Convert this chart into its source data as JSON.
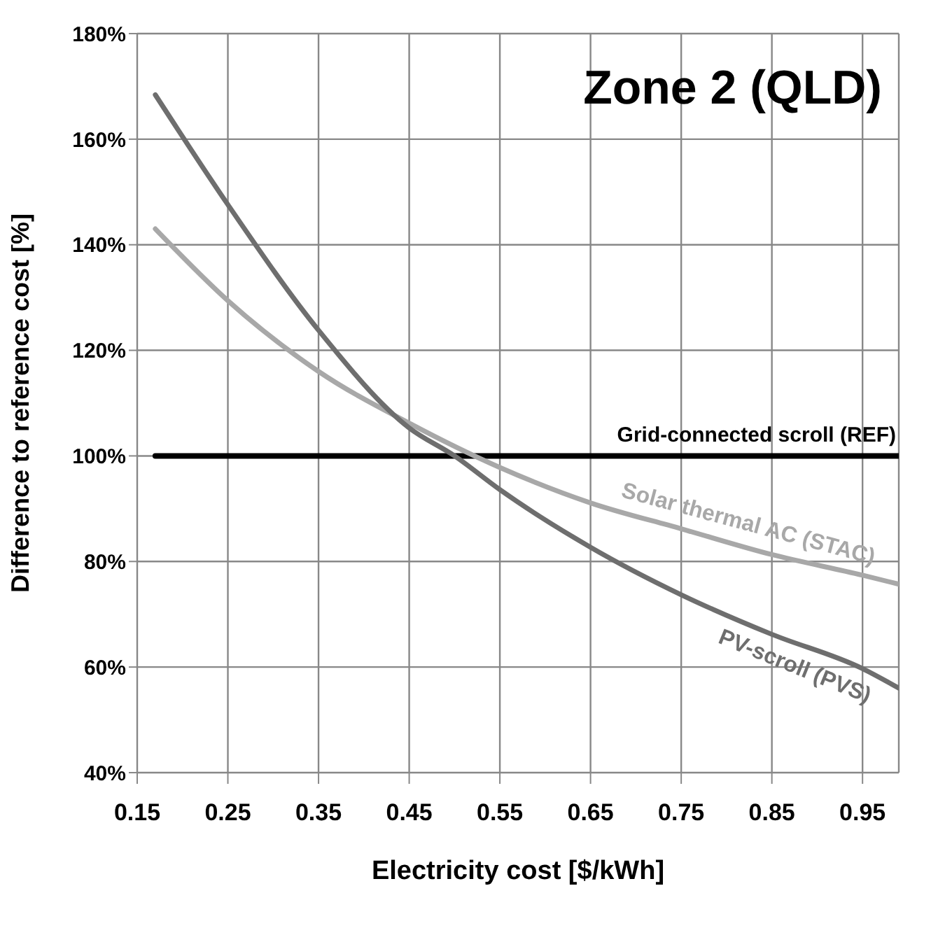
{
  "chart_data": {
    "type": "line",
    "xlabel": "Electricity cost [$/kWh]",
    "ylabel": "Difference to reference cost [%]",
    "annotations": [
      "Zone 2 (QLD)"
    ],
    "series": [
      {
        "name": "Grid-connected scroll (REF)",
        "color": "#000000",
        "x": [
          0.17,
          0.99
        ],
        "values": [
          100,
          100
        ]
      },
      {
        "name": "Solar thermal AC (STAC)",
        "color": "#a8a8a8",
        "x": [
          0.17,
          0.25,
          0.35,
          0.45,
          0.55,
          0.65,
          0.75,
          0.85,
          0.95,
          0.99
        ],
        "values": [
          143,
          129.4,
          116,
          106.2,
          97.8,
          91.1,
          86.2,
          81.3,
          77.4,
          75.7
        ]
      },
      {
        "name": "PV-scroll (PVS)",
        "color": "#6e6e6e",
        "x": [
          0.17,
          0.25,
          0.35,
          0.45,
          0.5,
          0.55,
          0.65,
          0.75,
          0.85,
          0.95,
          0.99
        ],
        "values": [
          168.4,
          147.6,
          123.8,
          105.3,
          100,
          93.6,
          82.7,
          73.7,
          66.2,
          59.7,
          56
        ]
      }
    ],
    "xlim": [
      0.15,
      0.99
    ],
    "xticks": [
      0.15,
      0.25,
      0.35,
      0.45,
      0.55,
      0.65,
      0.75,
      0.85,
      0.95
    ],
    "ylim": [
      40,
      180
    ],
    "yticks": [
      {
        "value": 40,
        "label": "40%"
      },
      {
        "value": 60,
        "label": "60%"
      },
      {
        "value": 80,
        "label": "80%"
      },
      {
        "value": 100,
        "label": "100%"
      },
      {
        "value": 120,
        "label": "120%"
      },
      {
        "value": 140,
        "label": "140%"
      },
      {
        "value": 160,
        "label": "160%"
      },
      {
        "value": 180,
        "label": "180%"
      }
    ],
    "grid": true,
    "legend": false,
    "marker": "none",
    "line_style": "solid"
  }
}
